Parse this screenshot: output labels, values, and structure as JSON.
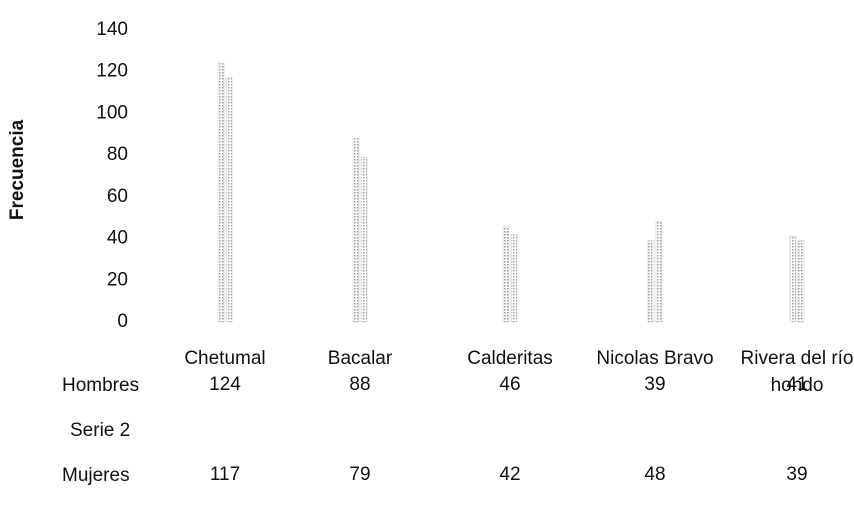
{
  "chart_data": {
    "type": "bar",
    "y_label": "Frecuencia",
    "categories": [
      "Chetumal",
      "Bacalar",
      "Calderitas",
      "Nicolas Bravo",
      "Rivera del río hondo"
    ],
    "series": [
      {
        "name": "Hombres",
        "color": "#b8b8b8",
        "values": [
          124,
          88,
          46,
          39,
          41
        ]
      },
      {
        "name": "Serie 2",
        "color": "#b8b8b8",
        "values": [
          null,
          null,
          null,
          null,
          null
        ]
      },
      {
        "name": "Mujeres",
        "color": "#b8b8b8",
        "values": [
          117,
          79,
          42,
          48,
          39
        ]
      }
    ],
    "ylim": [
      0,
      140
    ],
    "yticks": [
      0,
      20,
      40,
      60,
      80,
      100,
      120,
      140
    ],
    "grid": false
  }
}
